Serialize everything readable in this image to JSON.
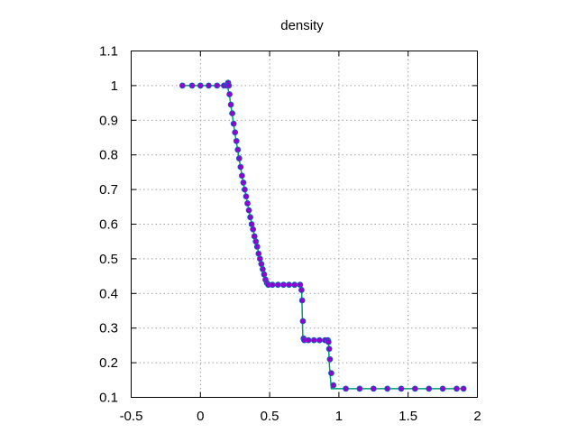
{
  "chart_data": {
    "type": "scatter",
    "title": "density",
    "xlabel": "",
    "ylabel": "",
    "xlim": [
      -0.5,
      2
    ],
    "ylim": [
      0.1,
      1.1
    ],
    "x_ticks": [
      "-0.5",
      "0",
      "0.5",
      "1",
      "1.5",
      "2"
    ],
    "y_ticks": [
      "0.1",
      "0.2",
      "0.3",
      "0.4",
      "0.5",
      "0.6",
      "0.7",
      "0.8",
      "0.9",
      "1",
      "1.1"
    ],
    "grid": true,
    "legend": "none",
    "line_color": "#009e73",
    "marker_color": "#9400d3",
    "marker_edge_color": "#0072b2",
    "series": [
      {
        "style": "line",
        "x": [
          -0.13,
          0.195,
          0.21,
          0.25,
          0.3,
          0.35,
          0.4,
          0.45,
          0.49,
          0.73,
          0.735,
          0.74,
          0.925,
          0.93,
          0.945,
          1.9
        ],
        "y": [
          1.0,
          1.0,
          0.97,
          0.86,
          0.74,
          0.64,
          0.55,
          0.47,
          0.425,
          0.425,
          0.35,
          0.265,
          0.265,
          0.2,
          0.125,
          0.125
        ]
      },
      {
        "style": "markers",
        "x": [
          -0.13,
          -0.06,
          0.0,
          0.06,
          0.12,
          0.17,
          0.19,
          0.2,
          0.205,
          0.21,
          0.22,
          0.23,
          0.24,
          0.25,
          0.26,
          0.27,
          0.28,
          0.29,
          0.3,
          0.31,
          0.32,
          0.33,
          0.34,
          0.35,
          0.36,
          0.37,
          0.38,
          0.39,
          0.4,
          0.41,
          0.42,
          0.43,
          0.44,
          0.45,
          0.46,
          0.47,
          0.48,
          0.49,
          0.52,
          0.56,
          0.6,
          0.64,
          0.68,
          0.72,
          0.73,
          0.735,
          0.74,
          0.745,
          0.75,
          0.78,
          0.82,
          0.86,
          0.9,
          0.92,
          0.925,
          0.93,
          0.935,
          0.945,
          0.96,
          1.05,
          1.15,
          1.25,
          1.35,
          1.45,
          1.55,
          1.65,
          1.75,
          1.85,
          1.9
        ],
        "y": [
          1.0,
          1.0,
          1.0,
          1.0,
          1.0,
          1.0,
          1.0,
          1.008,
          1.0,
          0.975,
          0.945,
          0.92,
          0.89,
          0.865,
          0.84,
          0.815,
          0.79,
          0.765,
          0.74,
          0.72,
          0.7,
          0.68,
          0.66,
          0.64,
          0.62,
          0.6,
          0.585,
          0.565,
          0.55,
          0.535,
          0.515,
          0.5,
          0.485,
          0.47,
          0.455,
          0.44,
          0.43,
          0.425,
          0.425,
          0.425,
          0.425,
          0.425,
          0.425,
          0.425,
          0.41,
          0.38,
          0.32,
          0.27,
          0.265,
          0.265,
          0.265,
          0.265,
          0.265,
          0.265,
          0.26,
          0.24,
          0.21,
          0.17,
          0.135,
          0.125,
          0.125,
          0.125,
          0.125,
          0.125,
          0.125,
          0.125,
          0.125,
          0.125,
          0.125
        ]
      }
    ]
  }
}
